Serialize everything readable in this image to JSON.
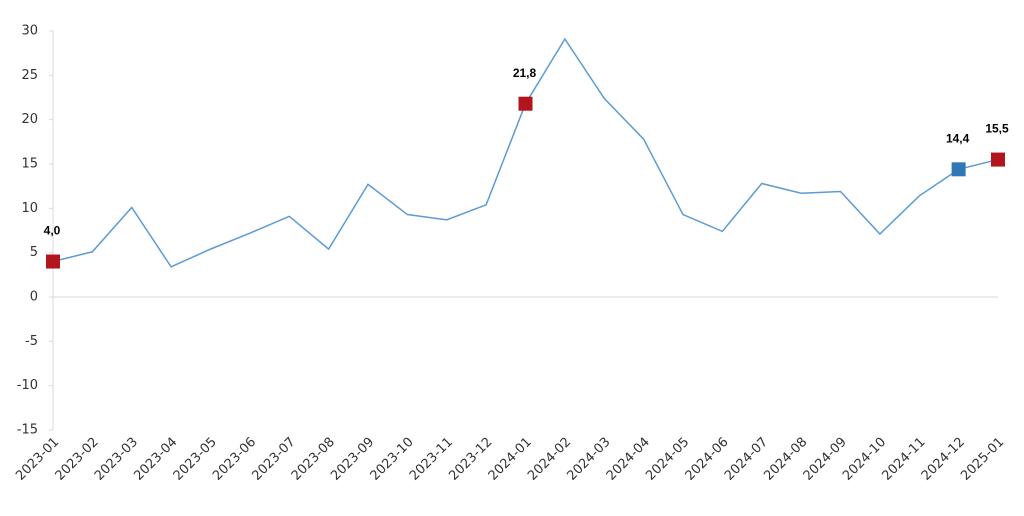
{
  "chart_data": {
    "type": "line",
    "categories": [
      "2023-01",
      "2023-02",
      "2023-03",
      "2023-04",
      "2023-05",
      "2023-06",
      "2023-07",
      "2023-08",
      "2023-09",
      "2023-10",
      "2023-11",
      "2023-12",
      "2024-01",
      "2024-02",
      "2024-03",
      "2024-04",
      "2024-05",
      "2024-06",
      "2024-07",
      "2024-08",
      "2024-09",
      "2024-10",
      "2024-11",
      "2024-12",
      "2025-01"
    ],
    "values": [
      4.0,
      5.1,
      10.1,
      3.4,
      5.4,
      7.2,
      9.1,
      5.4,
      12.7,
      9.3,
      8.7,
      10.4,
      21.8,
      29.1,
      22.4,
      17.8,
      9.3,
      7.4,
      12.8,
      11.7,
      11.9,
      7.1,
      11.4,
      14.4,
      15.5
    ],
    "value_labels": [
      "4,0",
      null,
      null,
      null,
      null,
      null,
      null,
      null,
      null,
      null,
      null,
      null,
      "21,8",
      null,
      null,
      null,
      null,
      null,
      null,
      null,
      null,
      null,
      null,
      "14,4",
      "15,5"
    ],
    "marker_colors": [
      "#b3151c",
      null,
      null,
      null,
      null,
      null,
      null,
      null,
      null,
      null,
      null,
      null,
      "#b3151c",
      null,
      null,
      null,
      null,
      null,
      null,
      null,
      null,
      null,
      null,
      "#2e78b7",
      "#b3151c"
    ],
    "color": "#5b9bd5",
    "ylim": [
      -15,
      30
    ],
    "yticks": [
      -15,
      -10,
      -5,
      0,
      5,
      10,
      15,
      20,
      25,
      30
    ]
  }
}
